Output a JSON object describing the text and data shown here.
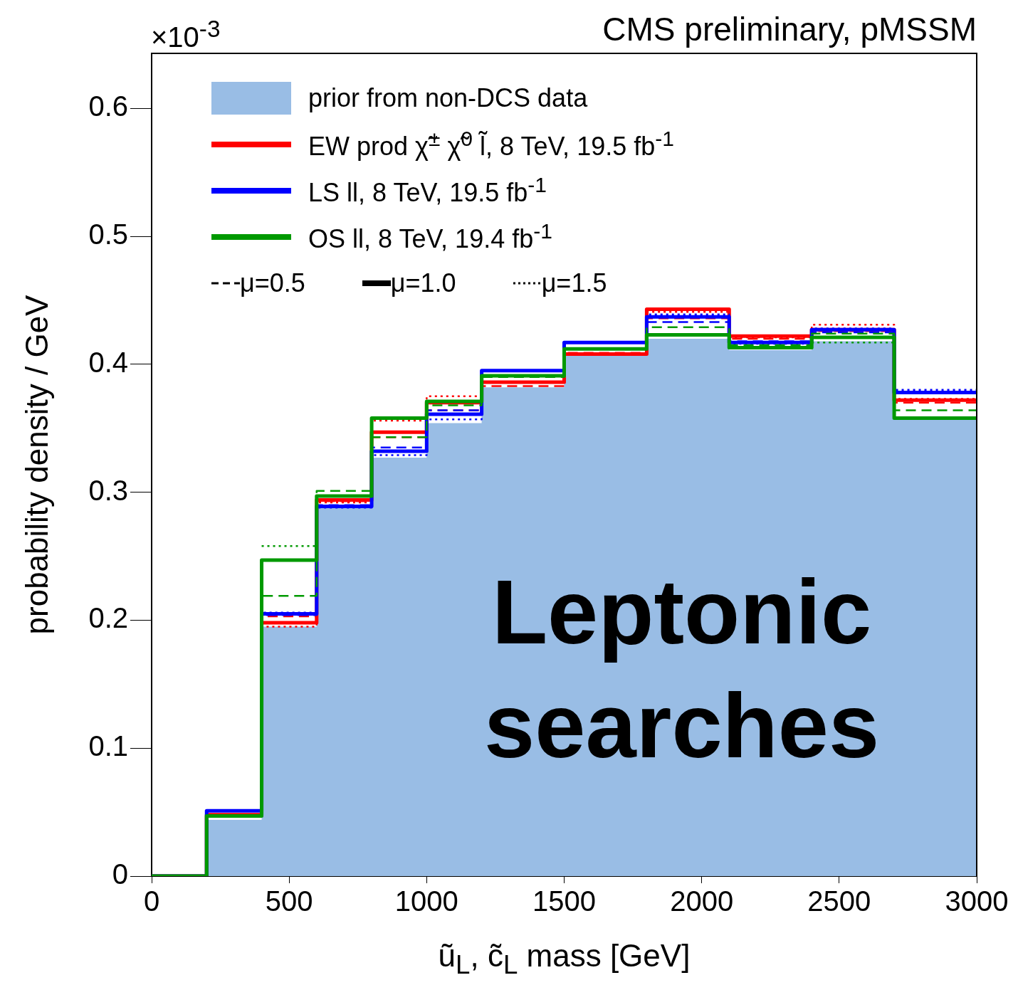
{
  "chart_data": {
    "type": "histogram",
    "title": "CMS preliminary, pMSSM",
    "xlabel": "ũ$_{L}$, c̃$_{L}$ mass [GeV]",
    "ylabel": "probability density / GeV",
    "bins": [
      0,
      200,
      400,
      600,
      800,
      1000,
      1200,
      1500,
      1800,
      2100,
      2400,
      2700,
      3000
    ],
    "xlim": [
      0,
      3000
    ],
    "xticks": [
      0,
      500,
      1000,
      1500,
      2000,
      2500,
      3000
    ],
    "ylim": [
      0,
      0.643
    ],
    "yticks": [
      0,
      0.1,
      0.2,
      0.3,
      0.4,
      0.5,
      0.6
    ],
    "grid": false,
    "legend": "top left",
    "annotations": [
      "×10$^{-3}$",
      "Leptonic searches",
      "μ=0.5",
      "μ=1.0",
      "μ=1.5"
    ],
    "series": [
      {
        "name": "prior from non-DCS data",
        "type": "histogram",
        "color": "#99bde5",
        "values": [
          0,
          0.044,
          0.195,
          0.288,
          0.327,
          0.354,
          0.382,
          0.407,
          0.42,
          0.411,
          0.418,
          0.357
        ]
      },
      {
        "type": "step",
        "color": "#ff0000",
        "line_style": "dashed",
        "x": [
          0,
          200,
          400,
          600,
          800,
          1000,
          1200,
          1500,
          1800,
          2100,
          2400,
          2700,
          3000
        ],
        "values": [
          0,
          0.048,
          0.203,
          0.293,
          0.343,
          0.364,
          0.383,
          0.409,
          0.436,
          0.42,
          0.426,
          0.37,
          0.37
        ]
      },
      {
        "name": "EW prod χ̃$^{±}$ χ̃$^{0}$ l̃, 8 TeV, 19.5 fb$^{-1}$",
        "type": "step",
        "color": "#ff0000",
        "line_style": "solid",
        "x": [
          0,
          200,
          400,
          600,
          800,
          1000,
          1200,
          1500,
          1800,
          2100,
          2400,
          2700,
          3000
        ],
        "values": [
          0,
          0.048,
          0.198,
          0.294,
          0.347,
          0.37,
          0.386,
          0.408,
          0.443,
          0.422,
          0.427,
          0.372,
          0.372
        ]
      },
      {
        "type": "step",
        "color": "#ff0000",
        "line_style": "dotted",
        "x": [
          0,
          200,
          400,
          600,
          800,
          1000,
          1200,
          1500,
          1800,
          2100,
          2400,
          2700,
          3000
        ],
        "values": [
          0,
          0.048,
          0.195,
          0.292,
          0.356,
          0.375,
          0.386,
          0.408,
          0.441,
          0.421,
          0.431,
          0.373,
          0.373
        ]
      },
      {
        "type": "step",
        "color": "#0000ff",
        "line_style": "dashed",
        "x": [
          0,
          200,
          400,
          600,
          800,
          1000,
          1200,
          1500,
          1800,
          2100,
          2400,
          2700,
          3000
        ],
        "values": [
          0,
          0.051,
          0.204,
          0.29,
          0.335,
          0.364,
          0.395,
          0.417,
          0.433,
          0.418,
          0.425,
          0.378,
          0.378
        ]
      },
      {
        "name": "LS ll, 8 TeV, 19.5 fb$^{-1}$",
        "type": "step",
        "color": "#0000ff",
        "line_style": "solid",
        "x": [
          0,
          200,
          400,
          600,
          800,
          1000,
          1200,
          1500,
          1800,
          2100,
          2400,
          2700,
          3000
        ],
        "values": [
          0,
          0.051,
          0.205,
          0.289,
          0.332,
          0.361,
          0.395,
          0.417,
          0.437,
          0.417,
          0.427,
          0.378,
          0.378
        ]
      },
      {
        "type": "step",
        "color": "#0000ff",
        "line_style": "dotted",
        "x": [
          0,
          200,
          400,
          600,
          800,
          1000,
          1200,
          1500,
          1800,
          2100,
          2400,
          2700,
          3000
        ],
        "values": [
          0,
          0.051,
          0.206,
          0.288,
          0.329,
          0.357,
          0.395,
          0.417,
          0.439,
          0.416,
          0.428,
          0.38,
          0.38
        ]
      },
      {
        "type": "step",
        "color": "#009900",
        "line_style": "dashed",
        "x": [
          0,
          200,
          400,
          600,
          800,
          1000,
          1200,
          1500,
          1800,
          2100,
          2400,
          2700,
          3000
        ],
        "values": [
          0,
          0.047,
          0.219,
          0.301,
          0.343,
          0.368,
          0.39,
          0.412,
          0.429,
          0.415,
          0.424,
          0.364,
          0.364
        ]
      },
      {
        "name": "OS ll, 8 TeV, 19.4 fb$^{-1}$",
        "type": "step",
        "color": "#009900",
        "line_style": "solid",
        "x": [
          0,
          200,
          400,
          600,
          800,
          1000,
          1200,
          1500,
          1800,
          2100,
          2400,
          2700,
          3000
        ],
        "values": [
          0,
          0.047,
          0.247,
          0.297,
          0.358,
          0.371,
          0.391,
          0.412,
          0.423,
          0.413,
          0.421,
          0.358,
          0.358
        ]
      },
      {
        "type": "step",
        "color": "#009900",
        "line_style": "dotted",
        "x": [
          400,
          600,
          null,
          2400,
          2700
        ],
        "values": [
          0.258,
          0.258,
          null,
          0.417,
          0.417
        ]
      }
    ]
  }
}
